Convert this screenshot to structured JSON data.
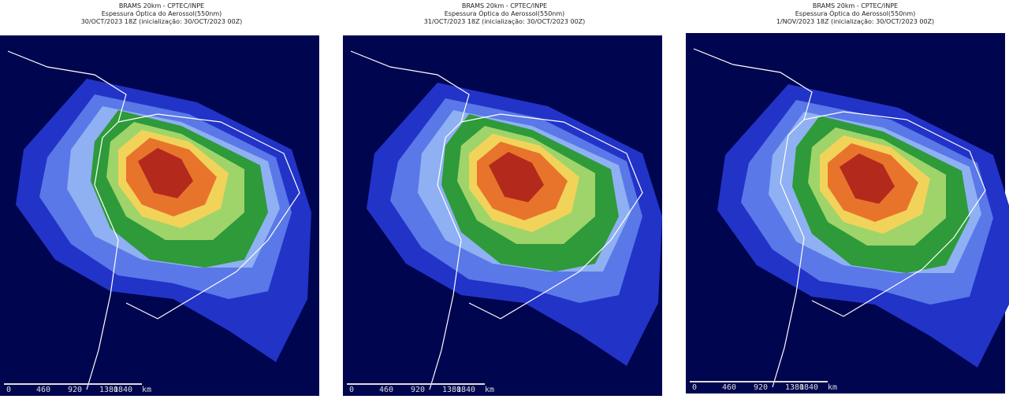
{
  "panels": [
    {
      "title": [
        "BRAMS 20km - CPTEC/INPE",
        "Espessura Óptica do Aerossol(550nm)",
        "30/OCT/2023 18Z (inicialização: 30/OCT/2023 00Z)"
      ],
      "scale_labels": [
        "0",
        "460",
        "920",
        "1380",
        "1840",
        "km"
      ]
    },
    {
      "title": [
        "BRAMS 20km - CPTEC/INPE",
        "Espessura Óptica do Aerossol(550nm)",
        "31/OCT/2023 18Z (inicialização: 30/OCT/2023 00Z)"
      ],
      "scale_labels": [
        "0",
        "460",
        "920",
        "1380",
        "1840",
        "km"
      ]
    },
    {
      "title": [
        "BRAMS 20km - CPTEC/INPE",
        "Espessura Óptica do Aerossol(550nm)",
        "1/NOV/2023 18Z (inicialização: 30/OCT/2023 00Z)"
      ],
      "scale_labels": [
        "0",
        "460",
        "920",
        "1380",
        "1840",
        "km"
      ]
    }
  ]
}
